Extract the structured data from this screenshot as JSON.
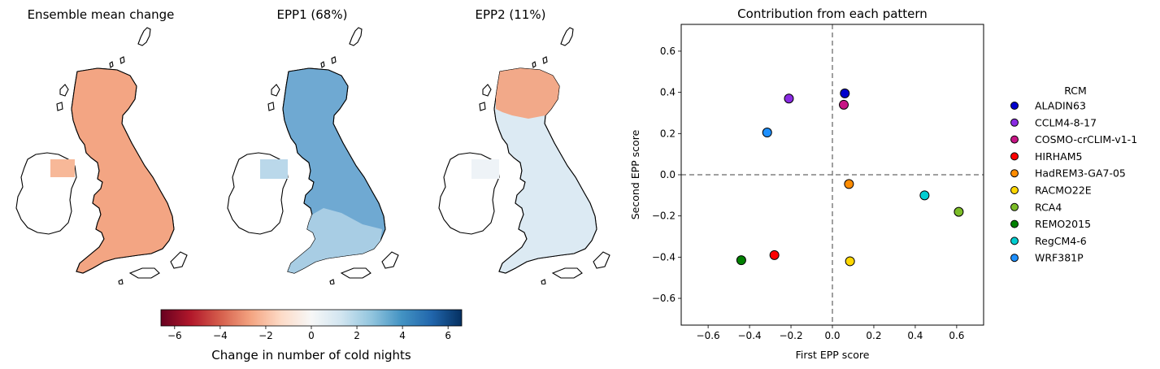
{
  "chart_data": [
    {
      "type": "map",
      "title": "Ensemble mean change",
      "fill": "#f3a583",
      "ireland_fill": "#f7b898",
      "ireland_partial_coverage": true
    },
    {
      "type": "map",
      "title": "EPP1 (68%)",
      "fill": "#6fa9d2",
      "south_fill": "#a8cde4",
      "ireland_fill": "#bad8ea",
      "ireland_partial_coverage": true
    },
    {
      "type": "map",
      "title": "EPP2 (11%)",
      "fill": "#dceaf3",
      "north_fill": "#f2a989",
      "ireland_fill": "#eef3f7",
      "ireland_partial_coverage": true
    },
    {
      "type": "colorbar",
      "colormap": "RdBu",
      "range": [
        -6.6,
        6.6
      ],
      "ticks": [
        -6,
        -4,
        -2,
        0,
        2,
        4,
        6
      ],
      "tick_labels": [
        "−6",
        "−4",
        "−2",
        "0",
        "2",
        "4",
        "6"
      ],
      "label": "Change in number of cold nights",
      "stops": [
        "#67001f",
        "#b2182b",
        "#d6604d",
        "#f4a582",
        "#fddbc7",
        "#f7f7f7",
        "#d1e5f0",
        "#92c5de",
        "#4393c3",
        "#2166ac",
        "#053061"
      ]
    },
    {
      "type": "scatter",
      "title": "Contribution from each pattern",
      "xlabel": "First EPP score",
      "ylabel": "Second EPP score",
      "xlim": [
        -0.73,
        0.73
      ],
      "ylim": [
        -0.73,
        0.73
      ],
      "xticks": [
        -0.6,
        -0.4,
        -0.2,
        0.0,
        0.2,
        0.4,
        0.6
      ],
      "xtick_labels": [
        "−0.6",
        "−0.4",
        "−0.2",
        "0.0",
        "0.2",
        "0.4",
        "0.6"
      ],
      "yticks": [
        -0.6,
        -0.4,
        -0.2,
        0.0,
        0.2,
        0.4,
        0.6
      ],
      "ytick_labels": [
        "−0.6",
        "−0.4",
        "−0.2",
        "0.0",
        "0.2",
        "0.4",
        "0.6"
      ],
      "reference_lines": {
        "x": 0,
        "y": 0,
        "style": "dashed",
        "color": "#808080"
      },
      "grid": false,
      "legend": {
        "title": "RCM",
        "placement": "right-outside"
      },
      "series": [
        {
          "name": "ALADIN63",
          "x": 0.06,
          "y": 0.395,
          "color": "#0000cd"
        },
        {
          "name": "CCLM4-8-17",
          "x": -0.21,
          "y": 0.37,
          "color": "#8a2be2"
        },
        {
          "name": "COSMO-crCLIM-v1-1",
          "x": 0.055,
          "y": 0.34,
          "color": "#c71585"
        },
        {
          "name": "HIRHAM5",
          "x": -0.28,
          "y": -0.39,
          "color": "#ff0000"
        },
        {
          "name": "HadREM3-GA7-05",
          "x": 0.08,
          "y": -0.045,
          "color": "#ff8c00"
        },
        {
          "name": "RACMO22E",
          "x": 0.085,
          "y": -0.42,
          "color": "#ffd700"
        },
        {
          "name": "RCA4",
          "x": 0.61,
          "y": -0.18,
          "color": "#7cbd28"
        },
        {
          "name": "REMO2015",
          "x": -0.44,
          "y": -0.415,
          "color": "#008000"
        },
        {
          "name": "RegCM4-6",
          "x": 0.445,
          "y": -0.1,
          "color": "#00ced1"
        },
        {
          "name": "WRF381P",
          "x": -0.315,
          "y": 0.205,
          "color": "#1e90ff"
        }
      ]
    }
  ]
}
